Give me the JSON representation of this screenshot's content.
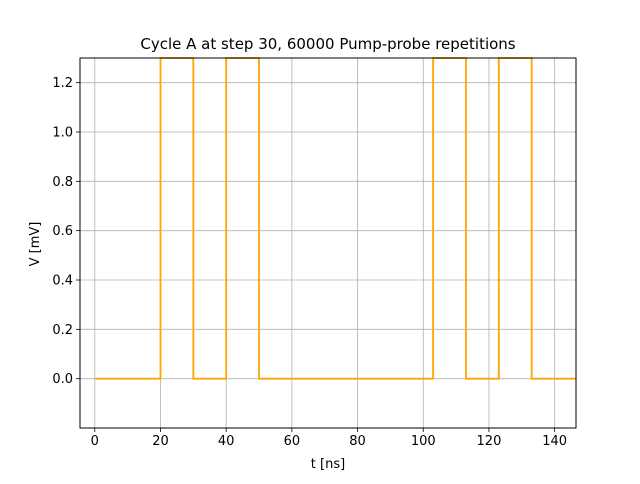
{
  "chart_data": {
    "type": "line",
    "title": "Cycle A at step 30, 60000 Pump-probe repetitions",
    "xlabel": "t [ns]",
    "ylabel": "V  [mV]",
    "xlim": [
      -4.5,
      146.5
    ],
    "ylim": [
      -0.2,
      1.3
    ],
    "x_ticks": [
      0,
      20,
      40,
      60,
      80,
      100,
      120,
      140
    ],
    "y_ticks": [
      0.0,
      0.2,
      0.4,
      0.6,
      0.8,
      1.0,
      1.2
    ],
    "x_tick_labels": [
      "0",
      "20",
      "40",
      "60",
      "80",
      "100",
      "120",
      "140"
    ],
    "y_tick_labels": [
      "0.0",
      "0.2",
      "0.4",
      "0.6",
      "0.8",
      "1.0",
      "1.2"
    ],
    "grid": true,
    "series": [
      {
        "color": "#ffa500",
        "x": [
          0,
          20,
          20,
          30,
          30,
          40,
          40,
          50,
          50,
          103,
          103,
          113,
          113,
          123,
          123,
          133,
          133,
          146.5
        ],
        "y": [
          0,
          0,
          1.3,
          1.3,
          0,
          0,
          1.3,
          1.3,
          0,
          0,
          1.3,
          1.3,
          0,
          0,
          1.3,
          1.3,
          0,
          0
        ]
      }
    ]
  }
}
